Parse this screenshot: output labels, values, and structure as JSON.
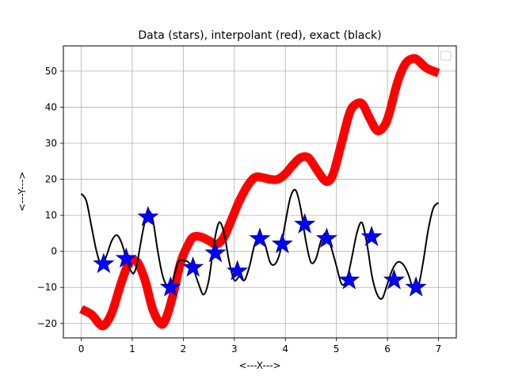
{
  "chart_data": {
    "type": "line",
    "title": "Data (stars), interpolant (red), exact (black)",
    "xlabel": "<---X--->",
    "ylabel": "<---Y--->",
    "xlim": [
      -0.35,
      7.35
    ],
    "ylim": [
      -24,
      57
    ],
    "xticks": [
      0,
      1,
      2,
      3,
      4,
      5,
      6,
      7
    ],
    "yticks": [
      -20,
      -10,
      0,
      10,
      20,
      30,
      40,
      50
    ],
    "grid": true,
    "legend": "top-right, empty",
    "series": [
      {
        "key": "interpolant",
        "color": "#ff0000",
        "style": "thick-line",
        "x": [
          0,
          0.2,
          0.35,
          0.45,
          0.6,
          0.8,
          0.95,
          1.1,
          1.25,
          1.4,
          1.55,
          1.65,
          1.8,
          1.95,
          2.1,
          2.2,
          2.35,
          2.5,
          2.65,
          2.8,
          2.95,
          3.1,
          3.25,
          3.4,
          3.55,
          3.7,
          3.85,
          4.0,
          4.15,
          4.3,
          4.45,
          4.6,
          4.75,
          4.85,
          4.95,
          5.1,
          5.25,
          5.35,
          5.5,
          5.65,
          5.8,
          5.95,
          6.05,
          6.2,
          6.35,
          6.5,
          6.6,
          6.75,
          6.9,
          7.0
        ],
        "y": [
          -16,
          -17.5,
          -20,
          -20.5,
          -17,
          -8,
          -3,
          -3,
          -8,
          -16,
          -20,
          -19,
          -12,
          -3,
          2,
          4,
          4,
          3,
          2,
          4,
          9,
          14,
          18,
          20.5,
          20.5,
          20,
          20,
          21.5,
          24,
          26,
          26,
          23,
          20,
          19.5,
          22,
          30,
          38,
          40.5,
          41,
          37,
          33.5,
          35,
          39,
          47,
          52,
          53.5,
          53,
          51,
          50,
          49.5
        ]
      },
      {
        "key": "exact",
        "color": "#000000",
        "style": "line",
        "x": [
          0,
          0.1,
          0.2,
          0.3,
          0.4,
          0.5,
          0.6,
          0.7,
          0.8,
          0.9,
          1.0,
          1.05,
          1.1,
          1.2,
          1.3,
          1.4,
          1.5,
          1.6,
          1.7,
          1.75,
          1.8,
          1.9,
          2.0,
          2.1,
          2.2,
          2.3,
          2.4,
          2.5,
          2.6,
          2.7,
          2.8,
          2.9,
          3.0,
          3.1,
          3.2,
          3.3,
          3.4,
          3.5,
          3.6,
          3.7,
          3.8,
          3.9,
          4.0,
          4.1,
          4.2,
          4.3,
          4.4,
          4.5,
          4.6,
          4.7,
          4.8,
          4.9,
          5.0,
          5.1,
          5.2,
          5.3,
          5.4,
          5.5,
          5.6,
          5.7,
          5.8,
          5.9,
          6.0,
          6.1,
          6.2,
          6.3,
          6.4,
          6.5,
          6.6,
          6.7,
          6.8,
          6.9,
          7.0
        ],
        "y": [
          16,
          14,
          7,
          0,
          -4,
          -1,
          3,
          4.5,
          2,
          -3,
          -6,
          -5.5,
          -3,
          5,
          11,
          9,
          0,
          -7,
          -10,
          -10,
          -8,
          -3,
          -2.5,
          -3,
          -5,
          -9,
          -12,
          -8,
          2,
          8,
          5,
          -3,
          -8,
          -7,
          -8,
          -4,
          2,
          4,
          2,
          -3,
          -3.5,
          0,
          8,
          15,
          17,
          12,
          3,
          -3,
          -2,
          3,
          5,
          1,
          -4,
          -9,
          -8,
          -2,
          5,
          8,
          2,
          -7,
          -12,
          -13,
          -9,
          -5,
          -3,
          -3.5,
          -6,
          -10,
          -10,
          -3,
          6,
          12,
          13.5
        ]
      },
      {
        "key": "data",
        "color": "#0000ff",
        "style": "star-markers",
        "x": [
          0.44,
          0.88,
          1.31,
          1.75,
          2.19,
          2.63,
          3.06,
          3.5,
          3.94,
          4.38,
          4.81,
          5.25,
          5.69,
          6.13,
          6.56
        ],
        "y": [
          -3.5,
          -2,
          9.5,
          -10,
          -4.5,
          -0.5,
          -5.5,
          3.5,
          2,
          7.5,
          3.5,
          -8,
          4,
          -8,
          -10
        ]
      }
    ]
  }
}
